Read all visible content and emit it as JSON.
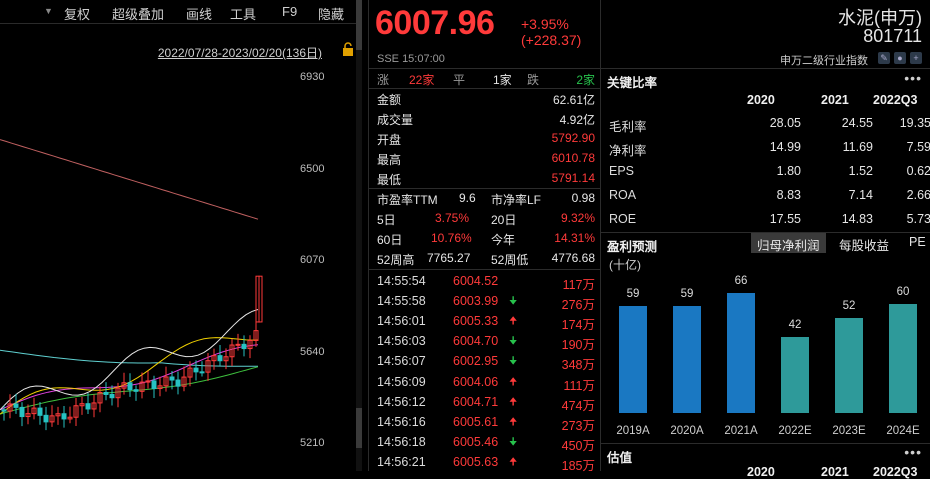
{
  "toolbar": {
    "items": [
      "复权",
      "超级叠加",
      "画线",
      "工具",
      "F9",
      "隐藏"
    ],
    "date_range": "2022/07/28-2023/02/20(136日)"
  },
  "chart": {
    "y_ticks": [
      "6930",
      "6500",
      "6070",
      "5640",
      "5210"
    ],
    "colors": {
      "up": "#ff3a3a",
      "down": "#27c2c2",
      "ma5": "#e6e6e6",
      "ma10": "#f0d000",
      "ma20": "#e040e0",
      "ma60": "#3ec03e",
      "ma120": "#5fd0d0",
      "ma250": "#c06060"
    }
  },
  "quote": {
    "price": "6007.96",
    "change": "+3.95% (+228.37)",
    "exchange": "SSE  15:07:00",
    "breadth": {
      "up_label": "涨",
      "up": "22家",
      "flat_label": "平",
      "flat": "1家",
      "down_label": "跌",
      "down": "2家"
    },
    "rows": [
      {
        "label": "金额",
        "value": "62.61亿",
        "color": "white"
      },
      {
        "label": "成交量",
        "value": "4.92亿",
        "color": "white"
      },
      {
        "label": "开盘",
        "value": "5792.90",
        "color": "red"
      },
      {
        "label": "最高",
        "value": "6010.78",
        "color": "red"
      },
      {
        "label": "最低",
        "value": "5791.14",
        "color": "red"
      }
    ],
    "pe_label": "市盈率TTM",
    "pe": "9.6",
    "pb_label": "市净率LF",
    "pb": "0.98",
    "perf": [
      {
        "l1": "5日",
        "v1": "3.75%",
        "l2": "20日",
        "v2": "9.32%"
      },
      {
        "l1": "60日",
        "v1": "10.76%",
        "l2": "今年",
        "v2": "14.31%"
      }
    ],
    "wk52_high_label": "52周高",
    "wk52_high": "7765.27",
    "wk52_low_label": "52周低",
    "wk52_low": "4776.68",
    "trades": [
      {
        "time": "14:55:54",
        "price": "6004.52",
        "dir": "",
        "vol": "117万"
      },
      {
        "time": "14:55:58",
        "price": "6003.99",
        "dir": "down",
        "vol": "276万"
      },
      {
        "time": "14:56:01",
        "price": "6005.33",
        "dir": "up",
        "vol": "174万"
      },
      {
        "time": "14:56:03",
        "price": "6004.70",
        "dir": "down",
        "vol": "190万"
      },
      {
        "time": "14:56:07",
        "price": "6002.95",
        "dir": "down",
        "vol": "348万"
      },
      {
        "time": "14:56:09",
        "price": "6004.06",
        "dir": "up",
        "vol": "111万"
      },
      {
        "time": "14:56:12",
        "price": "6004.71",
        "dir": "up",
        "vol": "474万"
      },
      {
        "time": "14:56:16",
        "price": "6005.61",
        "dir": "up",
        "vol": "273万"
      },
      {
        "time": "14:56:18",
        "price": "6005.46",
        "dir": "down",
        "vol": "450万"
      },
      {
        "time": "14:56:21",
        "price": "6005.63",
        "dir": "up",
        "vol": "185万"
      }
    ]
  },
  "index": {
    "name": "水泥(申万)",
    "code": "801711",
    "category": "申万二级行业指数"
  },
  "ratios": {
    "title": "关键比率",
    "years": [
      "2020",
      "2021",
      "2022Q3"
    ],
    "rows": [
      {
        "name": "毛利率",
        "values": [
          "28.05",
          "24.55",
          "19.35"
        ]
      },
      {
        "name": "净利率",
        "values": [
          "14.99",
          "11.69",
          "7.59"
        ]
      },
      {
        "name": "EPS",
        "values": [
          "1.80",
          "1.52",
          "0.62"
        ]
      },
      {
        "name": "ROA",
        "values": [
          "8.83",
          "7.14",
          "2.66"
        ]
      },
      {
        "name": "ROE",
        "values": [
          "17.55",
          "14.83",
          "5.73"
        ]
      }
    ]
  },
  "forecast": {
    "title": "盈利预测",
    "tabs": [
      "归母净利润",
      "每股收益",
      "PE"
    ],
    "unit": "(十亿)",
    "bars": [
      {
        "x": "2019A",
        "value": 59
      },
      {
        "x": "2020A",
        "value": 59
      },
      {
        "x": "2021A",
        "value": 66
      },
      {
        "x": "2022E",
        "value": 42
      },
      {
        "x": "2023E",
        "value": 52
      },
      {
        "x": "2024E",
        "value": 60
      }
    ],
    "colors": {
      "actual": "#1a78c2",
      "estimate": "#2e9a9a"
    }
  },
  "valuation": {
    "title": "估值",
    "years": [
      "2020",
      "2021",
      "2022Q3"
    ]
  }
}
